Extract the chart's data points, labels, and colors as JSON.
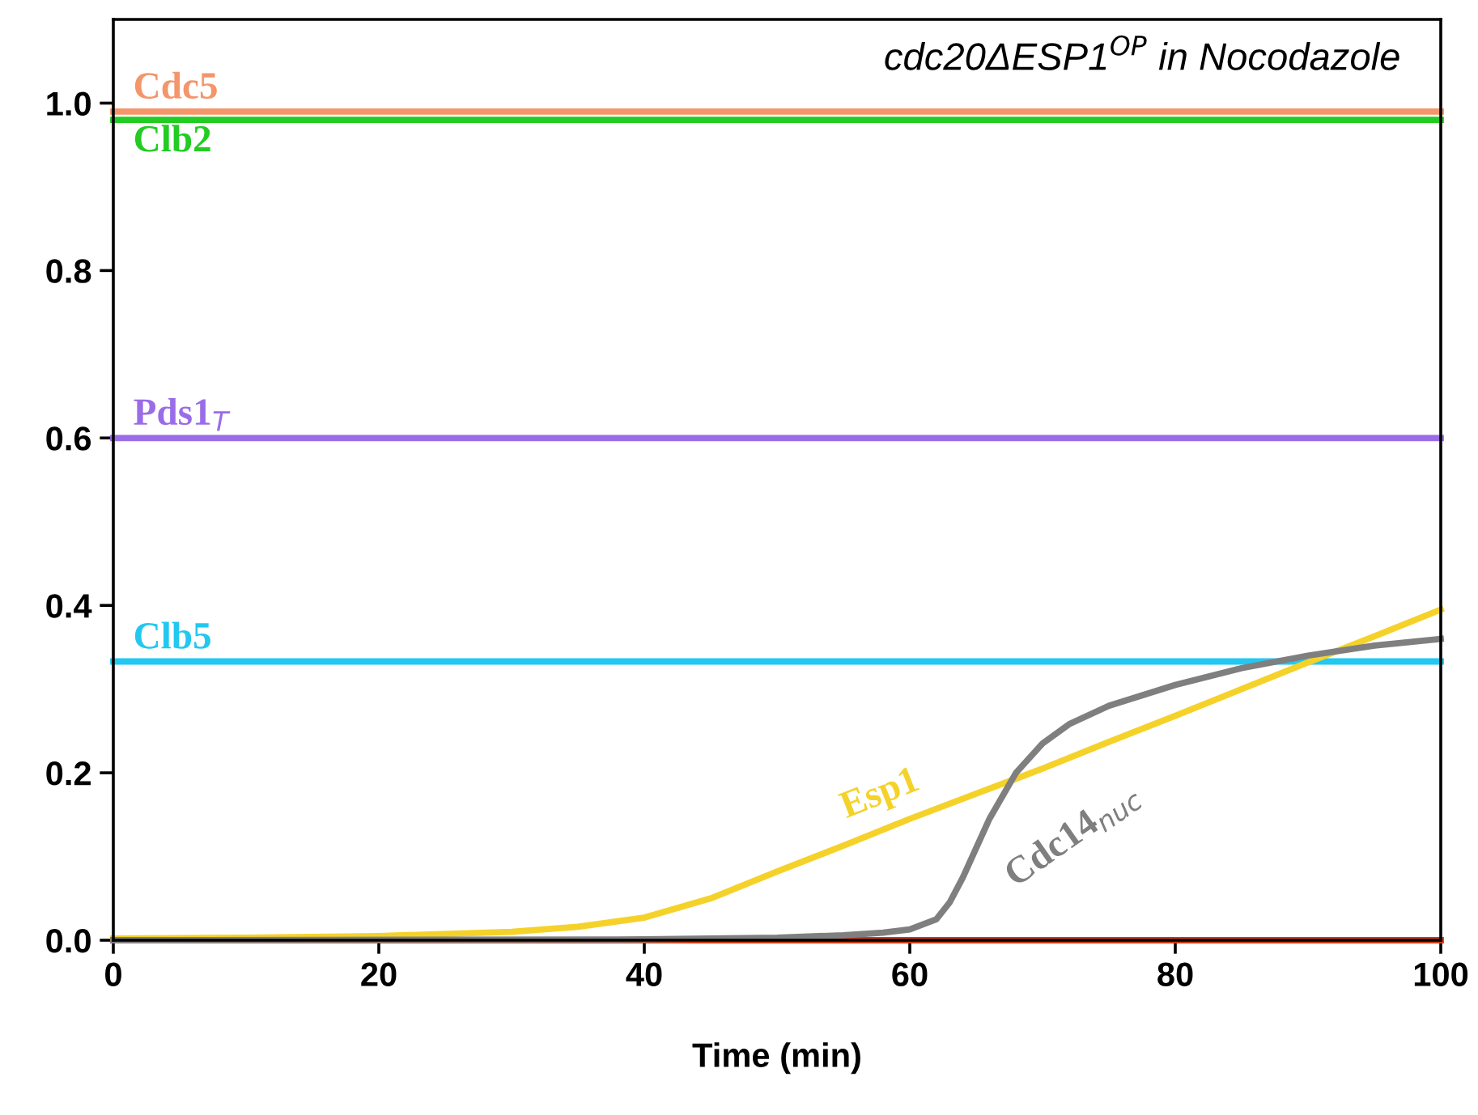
{
  "chart_data": {
    "type": "line",
    "title": "cdc20ΔESP1$^{OP}$ in Nocodazole",
    "xlabel": "Time (min)",
    "xlim": [
      0,
      100
    ],
    "xticks": [
      0,
      20,
      40,
      60,
      80,
      100
    ],
    "ylim": [
      0,
      1.1
    ],
    "yticks": [
      {
        "value": 0,
        "label": "0.0"
      },
      {
        "value": 0.2,
        "label": "0.2"
      },
      {
        "value": 0.4,
        "label": "0.4"
      },
      {
        "value": 0.6,
        "label": "0.6"
      },
      {
        "value": 0.8,
        "label": "0.8"
      },
      {
        "value": 1.0,
        "label": "1.0"
      }
    ],
    "grid": false,
    "legend": false,
    "marker": "none",
    "line_style": "solid",
    "series": [
      {
        "name": "Cdc5",
        "color": "#f4956a",
        "x": [
          0,
          100
        ],
        "values": [
          0.99,
          0.99
        ]
      },
      {
        "name": "Clb2",
        "color": "#22cc22",
        "x": [
          0,
          100
        ],
        "values": [
          0.98,
          0.98
        ]
      },
      {
        "name": "Pds1$_{T}$",
        "color": "#9a6ce8",
        "x": [
          0,
          100
        ],
        "values": [
          0.6,
          0.6
        ]
      },
      {
        "name": "Clb5",
        "color": "#22c8f0",
        "x": [
          0,
          100
        ],
        "values": [
          0.333,
          0.333
        ]
      },
      {
        "color": "#d03a10",
        "x": [
          0,
          100
        ],
        "values": [
          0.0,
          0.0
        ]
      },
      {
        "name": "Esp1",
        "color": "#f5d22a",
        "x": [
          0,
          10,
          20,
          30,
          35,
          40,
          45,
          50,
          55,
          60,
          65,
          70,
          75,
          80,
          85,
          90,
          95,
          100
        ],
        "values": [
          0.002,
          0.003,
          0.005,
          0.01,
          0.016,
          0.027,
          0.05,
          0.082,
          0.113,
          0.145,
          0.175,
          0.205,
          0.237,
          0.268,
          0.3,
          0.332,
          0.363,
          0.395
        ]
      },
      {
        "name": "Cdc14$_{nuc}$",
        "color": "#7f7f7f",
        "x": [
          0,
          40,
          50,
          55,
          58,
          60,
          62,
          63,
          64,
          65,
          66,
          68,
          70,
          72,
          75,
          80,
          85,
          90,
          95,
          100
        ],
        "values": [
          0.0,
          0.001,
          0.003,
          0.006,
          0.009,
          0.013,
          0.025,
          0.045,
          0.075,
          0.11,
          0.145,
          0.2,
          0.235,
          0.258,
          0.28,
          0.305,
          0.325,
          0.34,
          0.352,
          0.36
        ]
      }
    ]
  }
}
